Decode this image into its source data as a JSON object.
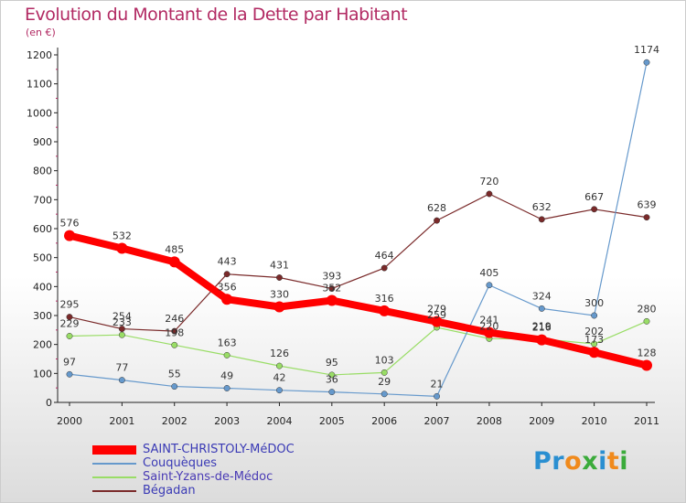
{
  "title": "Evolution du Montant de la Dette par Habitant",
  "subtitle": "(en €)",
  "logo": {
    "letters": [
      "P",
      "r",
      "o",
      "x",
      "i",
      "t",
      "i"
    ],
    "colors": [
      "#2a8fd1",
      "#2a8fd1",
      "#f08a1c",
      "#3bab3b",
      "#2a8fd1",
      "#f08a1c",
      "#3bab3b"
    ]
  },
  "chart_data": {
    "type": "line",
    "title": "Evolution du Montant de la Dette par Habitant",
    "ylabel": "(en €)",
    "xlabel": "",
    "x": [
      "2000",
      "2001",
      "2002",
      "2003",
      "2004",
      "2005",
      "2006",
      "2007",
      "2008",
      "2009",
      "2010",
      "2011"
    ],
    "ylim": [
      0,
      1200
    ],
    "yticks": [
      0,
      100,
      200,
      300,
      400,
      500,
      600,
      700,
      800,
      900,
      1000,
      1100,
      1200
    ],
    "grid": false,
    "legend_position": "bottom-left",
    "series": [
      {
        "name": "SAINT-CHRISTOLY-MéDOC",
        "color": "#ff0000",
        "values": [
          576,
          532,
          485,
          356,
          330,
          352,
          316,
          279,
          241,
          216,
          173,
          128
        ]
      },
      {
        "name": "Couquèques",
        "color": "#6699cc",
        "values": [
          97,
          77,
          55,
          49,
          42,
          36,
          29,
          21,
          405,
          324,
          300,
          1174
        ]
      },
      {
        "name": "Saint-Yzans-de-Médoc",
        "color": "#99dd66",
        "values": [
          229,
          233,
          198,
          163,
          126,
          95,
          103,
          259,
          220,
          219,
          202,
          280
        ]
      },
      {
        "name": "Bégadan",
        "color": "#7a2a2a",
        "values": [
          295,
          254,
          246,
          443,
          431,
          393,
          464,
          628,
          720,
          632,
          667,
          639
        ]
      }
    ]
  }
}
